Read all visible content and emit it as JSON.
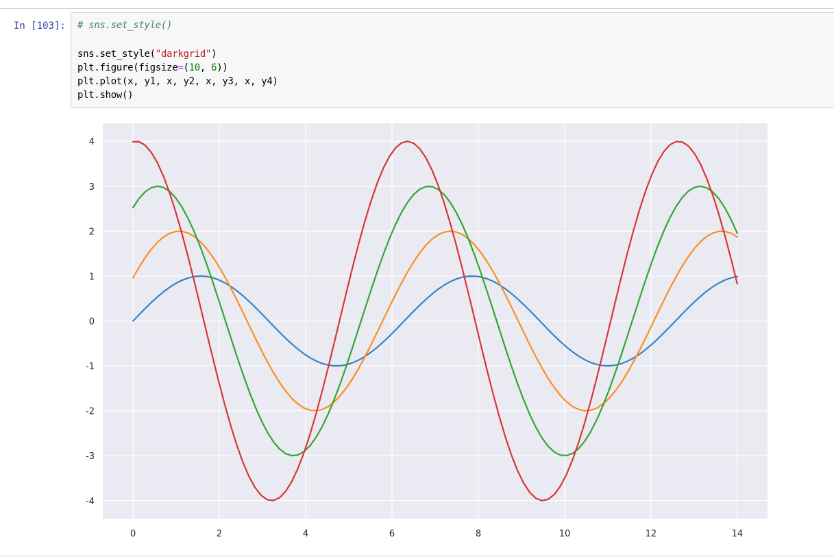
{
  "cell": {
    "prompt": "In [103]:",
    "code_lines": [
      [
        {
          "t": "# sns.set_style()",
          "c": "comment"
        }
      ],
      [],
      [
        {
          "t": "sns.set_style(",
          "c": ""
        },
        {
          "t": "\"darkgrid\"",
          "c": "string"
        },
        {
          "t": ")",
          "c": ""
        }
      ],
      [
        {
          "t": "plt.figure(figsize",
          "c": ""
        },
        {
          "t": "=",
          "c": "op"
        },
        {
          "t": "(",
          "c": ""
        },
        {
          "t": "10",
          "c": "number"
        },
        {
          "t": ", ",
          "c": ""
        },
        {
          "t": "6",
          "c": "number"
        },
        {
          "t": "))",
          "c": ""
        }
      ],
      [
        {
          "t": "plt.plot(x, y1, x, y2, x, y3, x, y4)",
          "c": ""
        }
      ],
      [
        {
          "t": "plt.show()",
          "c": ""
        }
      ]
    ]
  },
  "chart_data": {
    "type": "line",
    "style": "darkgrid",
    "title": "",
    "xlabel": "",
    "ylabel": "",
    "xlim": [
      -0.7,
      14.7
    ],
    "ylim": [
      -4.4,
      4.4
    ],
    "xticks": [
      0,
      2,
      4,
      6,
      8,
      10,
      12,
      14
    ],
    "yticks": [
      4,
      3,
      2,
      1,
      0,
      -1,
      -2,
      -3,
      -4
    ],
    "ytick_labels": [
      "4",
      "3",
      "2",
      "1",
      "0",
      "-1",
      "-2",
      "-3",
      "-4"
    ],
    "grid": true,
    "legend": "none",
    "x_range": [
      0,
      14
    ],
    "n_points": 100,
    "series": [
      {
        "formula": "sin(x)",
        "amplitude": 1,
        "phase": 0,
        "color": "#3a83c2"
      },
      {
        "formula": "2*sin(x+0.5)",
        "amplitude": 2,
        "phase": 0.5,
        "color": "#ff8c1f"
      },
      {
        "formula": "3*sin(x+1.0)",
        "amplitude": 3,
        "phase": 1.0,
        "color": "#33a532"
      },
      {
        "formula": "4*sin(x+1.5)",
        "amplitude": 4,
        "phase": 1.5,
        "color": "#d83636"
      }
    ],
    "background": "#eaeaf2"
  }
}
